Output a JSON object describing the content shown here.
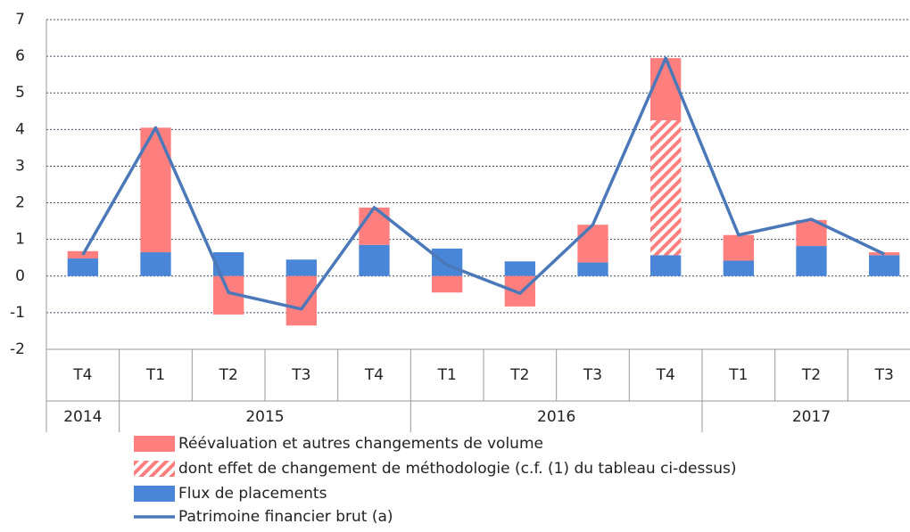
{
  "chart_data": {
    "type": "stacked_bar_line",
    "categories": [
      "T4",
      "T1",
      "T2",
      "T3",
      "T4",
      "T1",
      "T2",
      "T3",
      "T4",
      "T1",
      "T2",
      "T3"
    ],
    "groups": [
      {
        "label": "2014",
        "span": 1
      },
      {
        "label": "2015",
        "span": 4
      },
      {
        "label": "2016",
        "span": 4
      },
      {
        "label": "2017",
        "span": 3
      }
    ],
    "series": [
      {
        "name": "Réévaluation et autres changements de volume",
        "kind": "bar",
        "color": "#ff7f7f",
        "values": [
          0.2,
          3.4,
          -1.05,
          -1.35,
          1.02,
          -0.45,
          -0.83,
          1.03,
          5.38,
          0.7,
          0.71,
          0.08
        ]
      },
      {
        "name": "dont effet de changement de méthodologie (c.f. (1) du tableau ci-dessus)",
        "kind": "hatch",
        "color": "#ff7f7f",
        "values": [
          null,
          null,
          null,
          null,
          null,
          null,
          null,
          null,
          3.68,
          null,
          null,
          null
        ]
      },
      {
        "name": "Flux de placements",
        "kind": "bar",
        "color": "#4a86d8",
        "values": [
          0.48,
          0.65,
          0.65,
          0.45,
          0.85,
          0.75,
          0.4,
          0.37,
          0.57,
          0.42,
          0.82,
          0.57
        ]
      },
      {
        "name": "Patrimoine financier brut (a)",
        "kind": "line",
        "color": "#4a78b8",
        "values": [
          0.58,
          4.05,
          -0.45,
          -0.9,
          1.87,
          0.3,
          -0.47,
          1.4,
          5.95,
          1.12,
          1.55,
          0.6
        ]
      }
    ],
    "ylim": [
      -2,
      7
    ],
    "yticks": [
      -2,
      -1,
      0,
      1,
      2,
      3,
      4,
      5,
      6,
      7
    ],
    "grid": true
  }
}
